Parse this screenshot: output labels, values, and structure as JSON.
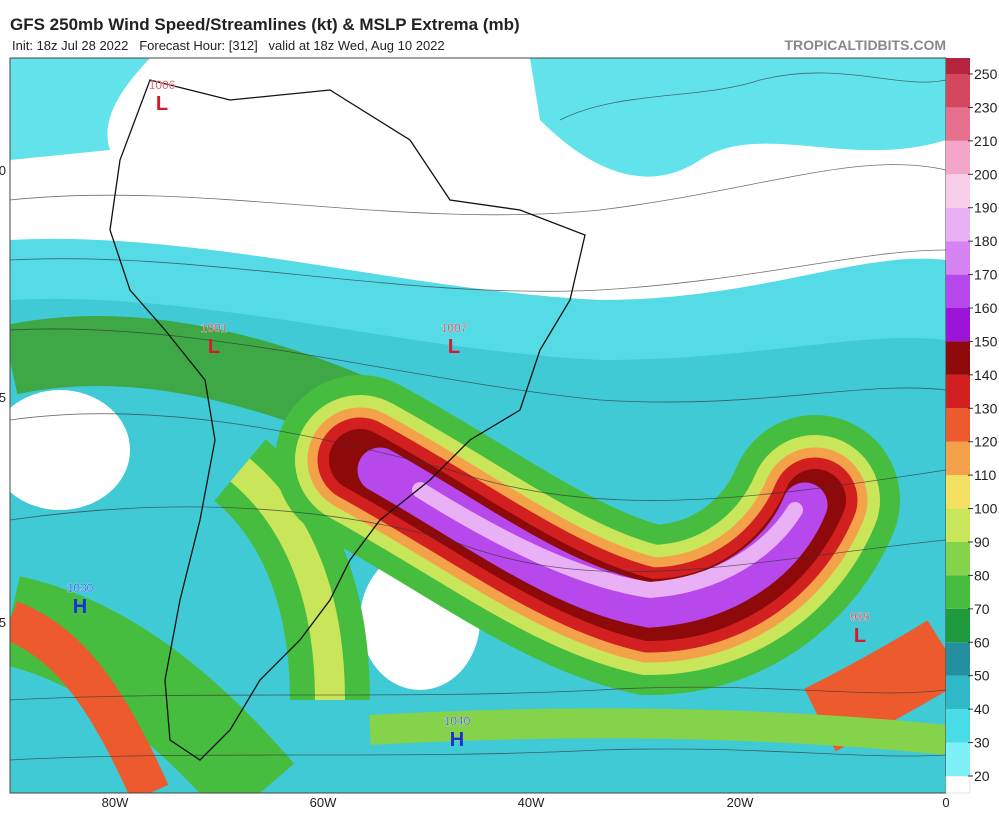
{
  "header": {
    "title": "GFS 250mb Wind Speed/Streamlines (kt) & MSLP Extrema (mb)",
    "subtitle": "Init: 18z Jul 28 2022   Forecast Hour: [312]   valid at 18z Wed, Aug 10 2022",
    "source": "TROPICALTIDBITS.COM"
  },
  "pressure_centers": [
    {
      "value": "1006",
      "letter": "L"
    },
    {
      "value": "1001",
      "letter": "L"
    },
    {
      "value": "1007",
      "letter": "L"
    },
    {
      "value": "1030",
      "letter": "H"
    },
    {
      "value": "985",
      "letter": "L"
    },
    {
      "value": "1040",
      "letter": "H"
    }
  ],
  "x_axis_labels": [
    "80W",
    "60W",
    "40W",
    "20W",
    "0"
  ],
  "y_axis_labels": [
    "0",
    "5",
    "5"
  ],
  "colorbar": {
    "ticks": [
      20,
      30,
      40,
      50,
      60,
      70,
      80,
      90,
      100,
      110,
      120,
      130,
      140,
      150,
      160,
      170,
      180,
      190,
      200,
      210,
      230,
      250
    ],
    "colors": [
      "#7ff0f5",
      "#48dde6",
      "#2fb8c8",
      "#24909f",
      "#1f9a3c",
      "#46bd3f",
      "#84d34a",
      "#c9e55a",
      "#f4e063",
      "#f4a24a",
      "#ec5a2e",
      "#d21f1f",
      "#8e0a0a",
      "#9b14d8",
      "#b748ec",
      "#d583f2",
      "#eab0f6",
      "#f8cde8",
      "#f4a6c8",
      "#e8708f",
      "#d3485f",
      "#b4243c"
    ]
  }
}
